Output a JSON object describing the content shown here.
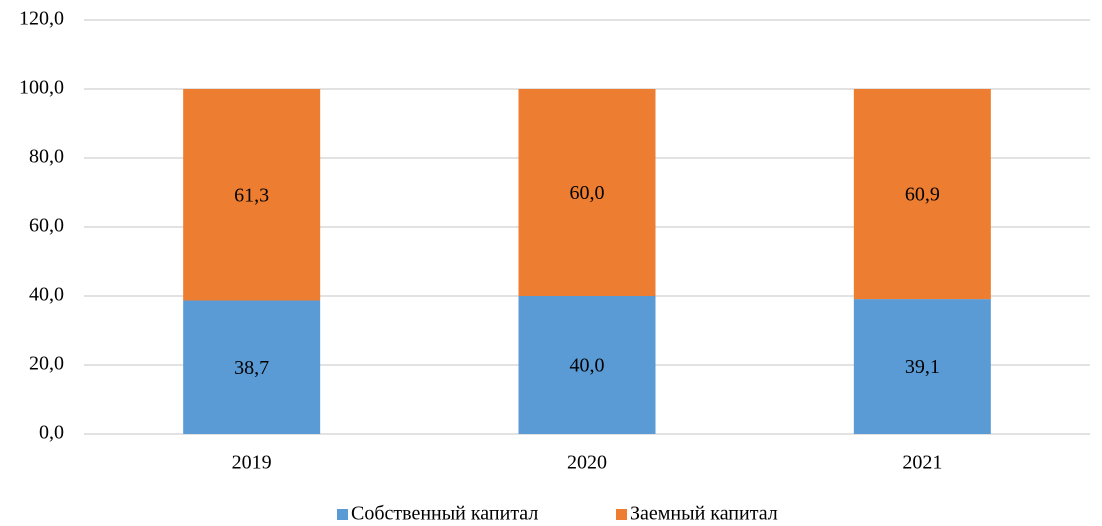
{
  "chart_data": {
    "type": "bar",
    "stacked": true,
    "categories": [
      "2019",
      "2020",
      "2021"
    ],
    "series": [
      {
        "name": "Собственный капитал",
        "values": [
          38.7,
          40.0,
          39.1
        ],
        "labels": [
          "38,7",
          "40,0",
          "39,1"
        ],
        "color": "#5B9BD5"
      },
      {
        "name": "Заемный капитал",
        "values": [
          61.3,
          60.0,
          60.9
        ],
        "labels": [
          "61,3",
          "60,0",
          "60,9"
        ],
        "color": "#ED7D31"
      }
    ],
    "ylim": [
      0,
      120
    ],
    "yticks": [
      0,
      20,
      40,
      60,
      80,
      100,
      120
    ],
    "ytick_labels": [
      "0,0",
      "20,0",
      "40,0",
      "60,0",
      "80,0",
      "100,0",
      "120,0"
    ],
    "grid": true,
    "legend": "bottom-center",
    "title": "",
    "xlabel": "",
    "ylabel": ""
  }
}
